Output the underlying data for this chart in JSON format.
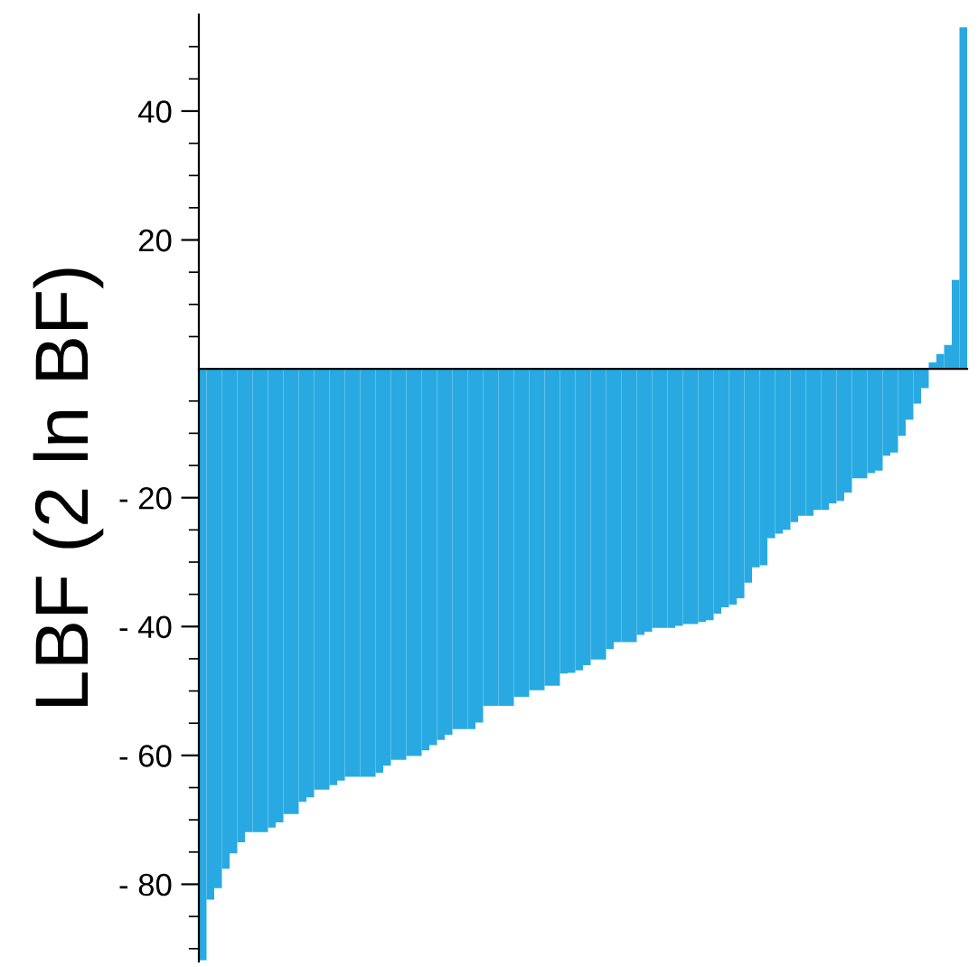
{
  "chart_data": {
    "type": "bar",
    "ylabel": "LBF (2 ln BF)",
    "color": "#29a9e1",
    "categories": [
      null,
      null,
      null,
      null,
      null,
      null,
      null,
      null,
      null,
      null,
      null,
      null,
      null,
      null,
      null,
      null,
      null,
      null,
      null,
      null,
      null,
      null,
      null,
      null,
      null,
      null,
      null,
      null,
      null,
      null,
      null,
      null,
      null,
      null,
      null,
      null,
      null,
      null,
      null,
      null,
      null,
      null,
      null,
      null,
      null,
      null,
      null,
      null,
      null,
      null,
      null,
      null,
      null,
      null,
      null,
      null,
      null,
      null,
      null,
      null,
      null,
      null,
      null,
      null,
      null,
      null,
      null,
      null,
      null,
      null,
      null,
      null,
      null,
      null,
      null,
      null,
      null,
      null,
      null,
      null,
      null,
      null,
      null,
      null,
      null,
      null,
      null,
      null,
      null,
      null,
      null,
      null,
      null,
      null,
      null,
      null,
      null,
      null,
      null,
      null
    ],
    "values": [
      -91.8,
      -82.4,
      -80.6,
      -77.6,
      -75.2,
      -73.5,
      -71.9,
      -71.9,
      -71.9,
      -71.2,
      -70.4,
      -69.1,
      -69.1,
      -67.2,
      -66.5,
      -65.3,
      -65.3,
      -64.6,
      -63.9,
      -63.3,
      -63.3,
      -63.3,
      -63.3,
      -62.7,
      -61.6,
      -60.7,
      -60.7,
      -60.1,
      -60.1,
      -59.2,
      -58.4,
      -57.6,
      -56.8,
      -55.9,
      -55.9,
      -55.9,
      -54.9,
      -52.3,
      -52.3,
      -52.3,
      -52.3,
      -50.9,
      -50.9,
      -49.9,
      -49.9,
      -49.2,
      -49.2,
      -47.3,
      -47.2,
      -46.8,
      -46.0,
      -45.1,
      -45.1,
      -43.5,
      -42.4,
      -42.4,
      -42.4,
      -41.3,
      -40.8,
      -40.2,
      -40.2,
      -40.2,
      -39.9,
      -39.6,
      -39.6,
      -39.3,
      -39.0,
      -38.0,
      -37.0,
      -36.6,
      -35.6,
      -33.2,
      -30.8,
      -30.5,
      -26.3,
      -25.6,
      -25.0,
      -23.8,
      -22.8,
      -22.8,
      -21.9,
      -21.9,
      -20.9,
      -20.5,
      -19.2,
      -17.0,
      -17.0,
      -16.2,
      -15.8,
      -13.5,
      -13.0,
      -10.4,
      -7.9,
      -5.4,
      -3.0,
      1.0,
      2.3,
      3.7,
      13.8,
      53.0
    ],
    "ylim": [
      -92,
      55
    ],
    "yticks": [
      {
        "value": -90,
        "label": null
      },
      {
        "value": -85,
        "label": null
      },
      {
        "value": -80,
        "label": "- 80"
      },
      {
        "value": -75,
        "label": null
      },
      {
        "value": -70,
        "label": null
      },
      {
        "value": -65,
        "label": null
      },
      {
        "value": -60,
        "label": "- 60"
      },
      {
        "value": -55,
        "label": null
      },
      {
        "value": -50,
        "label": null
      },
      {
        "value": -45,
        "label": null
      },
      {
        "value": -40,
        "label": "- 40"
      },
      {
        "value": -35,
        "label": null
      },
      {
        "value": -30,
        "label": null
      },
      {
        "value": -25,
        "label": null
      },
      {
        "value": -20,
        "label": "- 20"
      },
      {
        "value": -15,
        "label": null
      },
      {
        "value": -10,
        "label": null
      },
      {
        "value": -5,
        "label": null
      },
      {
        "value": 5,
        "label": null
      },
      {
        "value": 10,
        "label": null
      },
      {
        "value": 15,
        "label": null
      },
      {
        "value": 20,
        "label": "20"
      },
      {
        "value": 25,
        "label": null
      },
      {
        "value": 30,
        "label": null
      },
      {
        "value": 35,
        "label": null
      },
      {
        "value": 40,
        "label": "40"
      },
      {
        "value": 45,
        "label": null
      },
      {
        "value": 50,
        "label": null
      }
    ],
    "tick_labels": "y",
    "grid": false,
    "legend": false
  }
}
